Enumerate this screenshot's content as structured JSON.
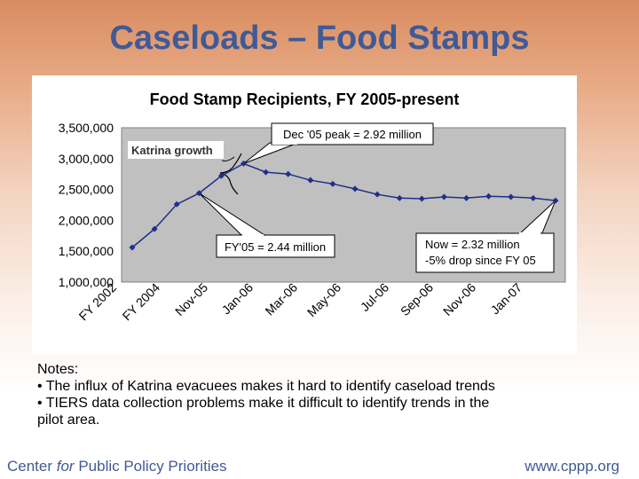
{
  "slide": {
    "title": "Caseloads – Food Stamps",
    "notes_heading": "Notes:",
    "notes": [
      "• The influx of Katrina evacuees makes it hard to identify caseload trends",
      "• TIERS data collection problems make it difficult to identify trends in the",
      "pilot area."
    ],
    "footer_pre": "Center ",
    "footer_italic": "for",
    "footer_post": " Public Policy Priorities",
    "footer_right": "www.cppp.org"
  },
  "chart_data": {
    "type": "line",
    "title": "Food Stamp Recipients, FY 2005-present",
    "xlabel": "",
    "ylabel": "",
    "ylim": [
      1000000,
      3500000
    ],
    "yticks": [
      1000000,
      1500000,
      2000000,
      2500000,
      3000000,
      3500000
    ],
    "ytick_labels": [
      "1,000,000",
      "1,500,000",
      "2,000,000",
      "2,500,000",
      "3,000,000",
      "3,500,000"
    ],
    "x_tick_labels": [
      "FY 2002",
      "FY 2004",
      "Nov-05",
      "Jan-06",
      "Mar-06",
      "May-06",
      "Jul-06",
      "Sep-06",
      "Nov-06",
      "Jan-07"
    ],
    "grid": false,
    "legend": "none",
    "background_color": "#c0c0c0",
    "line_color": "#1f2f8a",
    "series": [
      {
        "values": [
          1560000,
          1860000,
          2260000,
          2440000,
          2720000,
          2920000,
          2780000,
          2750000,
          2650000,
          2590000,
          2510000,
          2420000,
          2360000,
          2350000,
          2380000,
          2360000,
          2390000,
          2380000,
          2360000,
          2320000
        ]
      }
    ],
    "annotations": [
      {
        "text": "Katrina growth",
        "kind": "label"
      },
      {
        "text": "Dec '05 peak = 2.92 million",
        "kind": "callout"
      },
      {
        "text": "FY'05 = 2.44 million",
        "kind": "callout"
      },
      {
        "text": "Now  = 2.32 million",
        "kind": "callout",
        "line2": "-5% drop since FY 05"
      }
    ]
  }
}
